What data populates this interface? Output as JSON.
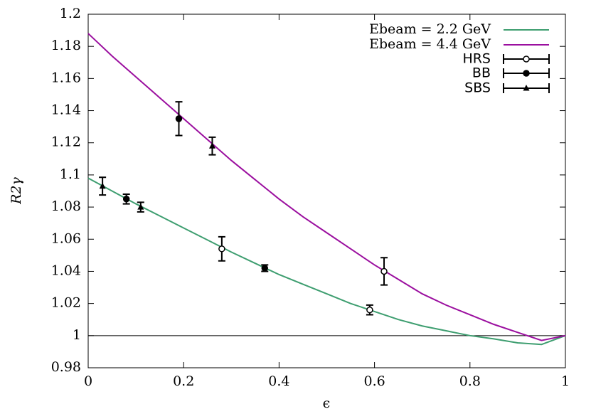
{
  "chart_data": {
    "type": "line",
    "xlabel": "ϵ",
    "ylabel": "R2γ",
    "xlim": [
      0,
      1
    ],
    "xticks": [
      0,
      0.2,
      0.4,
      0.6,
      0.8,
      1
    ],
    "ylim": [
      0.98,
      1.2
    ],
    "yticks": [
      0.98,
      1,
      1.02,
      1.04,
      1.06,
      1.08,
      1.1,
      1.12,
      1.14,
      1.16,
      1.18,
      1.2
    ],
    "hline": 1,
    "grid": false,
    "legend": "top-right",
    "series": [
      {
        "name": "Ebeam = 2.2 GeV",
        "color": "#3e9e70",
        "style": "line",
        "x": [
          0,
          0.05,
          0.1,
          0.15,
          0.2,
          0.25,
          0.3,
          0.35,
          0.4,
          0.45,
          0.5,
          0.55,
          0.6,
          0.65,
          0.7,
          0.75,
          0.8,
          0.85,
          0.9,
          0.95,
          1
        ],
        "values": [
          1.098,
          1.09,
          1.082,
          1.0745,
          1.067,
          1.0595,
          1.052,
          1.045,
          1.038,
          1.032,
          1.026,
          1.02,
          1.015,
          1.01,
          1.006,
          1.003,
          1.0,
          0.998,
          0.9955,
          0.9945,
          1.0
        ]
      },
      {
        "name": "Ebeam = 4.4 GeV",
        "color": "#9b0f9f",
        "style": "line",
        "x": [
          0,
          0.05,
          0.1,
          0.15,
          0.2,
          0.25,
          0.3,
          0.35,
          0.4,
          0.45,
          0.5,
          0.55,
          0.6,
          0.65,
          0.7,
          0.75,
          0.8,
          0.85,
          0.9,
          0.95,
          1
        ],
        "values": [
          1.188,
          1.174,
          1.161,
          1.148,
          1.135,
          1.122,
          1.109,
          1.097,
          1.085,
          1.074,
          1.064,
          1.054,
          1.044,
          1.035,
          1.026,
          1.019,
          1.013,
          1.007,
          1.002,
          0.997,
          1.0
        ]
      },
      {
        "name": "HRS",
        "color": "#000000",
        "style": "errorbar",
        "marker": "open-circle",
        "x": [
          0.28,
          0.59,
          0.62
        ],
        "values": [
          1.054,
          1.016,
          1.04
        ],
        "errors": [
          0.0075,
          0.003,
          0.0085
        ]
      },
      {
        "name": "BB",
        "color": "#000000",
        "style": "errorbar",
        "marker": "circle",
        "x": [
          0.08,
          0.19,
          0.37
        ],
        "values": [
          1.085,
          1.135,
          1.042
        ],
        "errors": [
          0.003,
          0.0105,
          0.002
        ]
      },
      {
        "name": "SBS",
        "color": "#000000",
        "style": "errorbar",
        "marker": "triangle",
        "x": [
          0.03,
          0.11,
          0.26
        ],
        "values": [
          1.093,
          1.08,
          1.118
        ],
        "errors": [
          0.0055,
          0.003,
          0.0055
        ]
      }
    ]
  }
}
